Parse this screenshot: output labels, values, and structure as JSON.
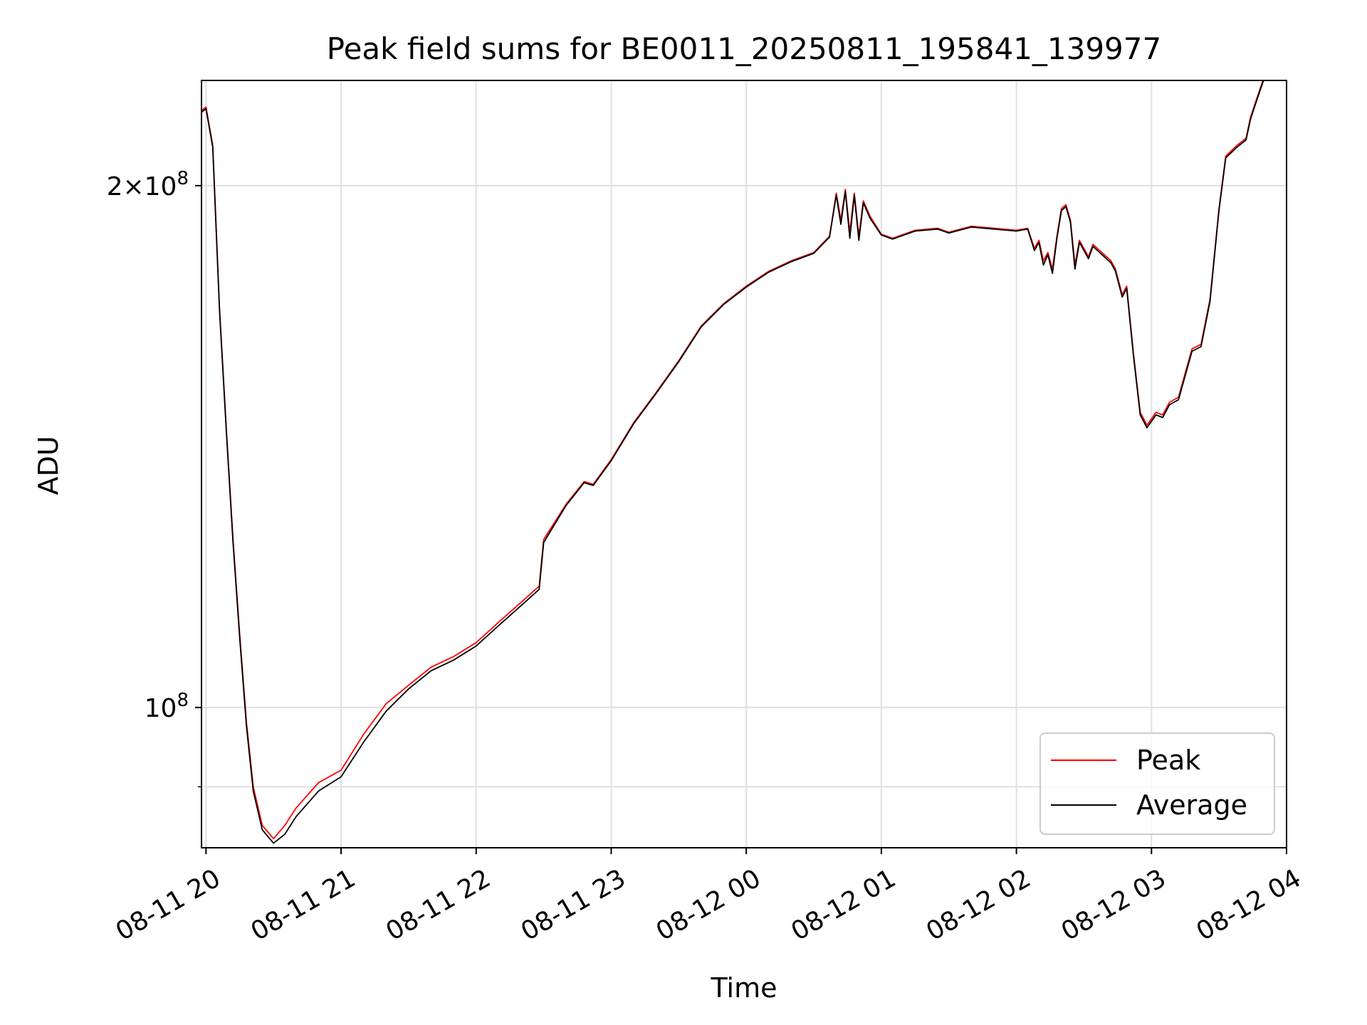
{
  "chart_data": {
    "type": "line",
    "title": "Peak field sums for BE0011_20250811_195841_139977",
    "xlabel": "Time",
    "ylabel": "ADU",
    "x_ticks": [
      "08-11 20",
      "08-11 21",
      "08-11 22",
      "08-11 23",
      "08-12 00",
      "08-12 01",
      "08-12 02",
      "08-12 03",
      "08-12 04"
    ],
    "y_scale": "log",
    "y_ticks": [
      {
        "value": 100000000,
        "base": "10",
        "exp": "8",
        "mult": ""
      },
      {
        "value": 200000000,
        "base": "10",
        "exp": "8",
        "mult": "2×"
      }
    ],
    "y_minor_ticks": [
      90000000
    ],
    "xlim": [
      "2025-08-11 19:58",
      "2025-08-12 04:00"
    ],
    "ylim": [
      83000000,
      230000000
    ],
    "grid": true,
    "legend_position": "lower-right",
    "series": [
      {
        "name": "Peak",
        "color": "#ff0000",
        "points": [
          [
            "2025-08-11 19:58",
            221000000
          ],
          [
            "2025-08-11 20:00",
            222000000
          ],
          [
            "2025-08-11 20:03",
            211000000
          ],
          [
            "2025-08-11 20:06",
            170000000
          ],
          [
            "2025-08-11 20:09",
            145000000
          ],
          [
            "2025-08-11 20:12",
            125000000
          ],
          [
            "2025-08-11 20:15",
            110000000
          ],
          [
            "2025-08-11 20:18",
            98000000
          ],
          [
            "2025-08-11 20:21",
            90000000
          ],
          [
            "2025-08-11 20:25",
            85500000
          ],
          [
            "2025-08-11 20:30",
            84000000
          ],
          [
            "2025-08-11 20:35",
            85500000
          ],
          [
            "2025-08-11 20:40",
            87500000
          ],
          [
            "2025-08-11 20:50",
            90500000
          ],
          [
            "2025-08-11 21:00",
            92000000
          ],
          [
            "2025-08-11 21:10",
            96500000
          ],
          [
            "2025-08-11 21:20",
            100500000
          ],
          [
            "2025-08-11 21:30",
            103000000
          ],
          [
            "2025-08-11 21:40",
            105500000
          ],
          [
            "2025-08-11 21:50",
            107000000
          ],
          [
            "2025-08-11 22:00",
            109000000
          ],
          [
            "2025-08-11 22:10",
            112000000
          ],
          [
            "2025-08-11 22:20",
            115000000
          ],
          [
            "2025-08-11 22:28",
            117500000
          ],
          [
            "2025-08-11 22:30",
            125000000
          ],
          [
            "2025-08-11 22:40",
            131000000
          ],
          [
            "2025-08-11 22:48",
            135000000
          ],
          [
            "2025-08-11 22:52",
            134500000
          ],
          [
            "2025-08-11 23:00",
            139000000
          ],
          [
            "2025-08-11 23:10",
            146000000
          ],
          [
            "2025-08-11 23:20",
            152000000
          ],
          [
            "2025-08-11 23:30",
            158500000
          ],
          [
            "2025-08-11 23:40",
            166000000
          ],
          [
            "2025-08-11 23:50",
            171000000
          ],
          [
            "2025-08-12 00:00",
            175000000
          ],
          [
            "2025-08-12 00:10",
            178500000
          ],
          [
            "2025-08-12 00:20",
            181000000
          ],
          [
            "2025-08-12 00:30",
            183000000
          ],
          [
            "2025-08-12 00:37",
            187000000
          ],
          [
            "2025-08-12 00:40",
            198000000
          ],
          [
            "2025-08-12 00:42",
            191000000
          ],
          [
            "2025-08-12 00:44",
            199000000
          ],
          [
            "2025-08-12 00:46",
            188000000
          ],
          [
            "2025-08-12 00:48",
            198000000
          ],
          [
            "2025-08-12 00:50",
            187000000
          ],
          [
            "2025-08-12 00:52",
            196000000
          ],
          [
            "2025-08-12 00:55",
            192000000
          ],
          [
            "2025-08-12 01:00",
            187500000
          ],
          [
            "2025-08-12 01:05",
            186500000
          ],
          [
            "2025-08-12 01:15",
            188500000
          ],
          [
            "2025-08-12 01:25",
            189000000
          ],
          [
            "2025-08-12 01:30",
            188000000
          ],
          [
            "2025-08-12 01:40",
            189500000
          ],
          [
            "2025-08-12 01:50",
            189000000
          ],
          [
            "2025-08-12 02:00",
            188500000
          ],
          [
            "2025-08-12 02:05",
            189000000
          ],
          [
            "2025-08-12 02:08",
            184000000
          ],
          [
            "2025-08-12 02:10",
            186000000
          ],
          [
            "2025-08-12 02:12",
            181000000
          ],
          [
            "2025-08-12 02:14",
            183000000
          ],
          [
            "2025-08-12 02:16",
            179000000
          ],
          [
            "2025-08-12 02:18",
            187000000
          ],
          [
            "2025-08-12 02:20",
            194000000
          ],
          [
            "2025-08-12 02:22",
            195000000
          ],
          [
            "2025-08-12 02:24",
            191000000
          ],
          [
            "2025-08-12 02:26",
            180000000
          ],
          [
            "2025-08-12 02:28",
            186000000
          ],
          [
            "2025-08-12 02:30",
            184000000
          ],
          [
            "2025-08-12 02:32",
            182000000
          ],
          [
            "2025-08-12 02:34",
            185000000
          ],
          [
            "2025-08-12 02:38",
            183000000
          ],
          [
            "2025-08-12 02:42",
            181000000
          ],
          [
            "2025-08-12 02:44",
            179000000
          ],
          [
            "2025-08-12 02:47",
            173000000
          ],
          [
            "2025-08-12 02:49",
            175000000
          ],
          [
            "2025-08-12 02:52",
            160000000
          ],
          [
            "2025-08-12 02:55",
            148000000
          ],
          [
            "2025-08-12 02:58",
            145500000
          ],
          [
            "2025-08-12 03:02",
            148000000
          ],
          [
            "2025-08-12 03:05",
            147500000
          ],
          [
            "2025-08-12 03:08",
            150000000
          ],
          [
            "2025-08-12 03:12",
            151000000
          ],
          [
            "2025-08-12 03:18",
            161000000
          ],
          [
            "2025-08-12 03:22",
            162000000
          ],
          [
            "2025-08-12 03:26",
            172000000
          ],
          [
            "2025-08-12 03:30",
            194000000
          ],
          [
            "2025-08-12 03:33",
            208000000
          ],
          [
            "2025-08-12 03:38",
            211000000
          ],
          [
            "2025-08-12 03:42",
            213000000
          ],
          [
            "2025-08-12 03:44",
            219000000
          ],
          [
            "2025-08-12 03:47",
            225000000
          ],
          [
            "2025-08-12 03:50",
            231000000
          ]
        ]
      },
      {
        "name": "Average",
        "color": "#000000",
        "points": [
          [
            "2025-08-11 19:58",
            220500000
          ],
          [
            "2025-08-11 20:00",
            221500000
          ],
          [
            "2025-08-11 20:03",
            210500000
          ],
          [
            "2025-08-11 20:06",
            169500000
          ],
          [
            "2025-08-11 20:09",
            144500000
          ],
          [
            "2025-08-11 20:12",
            124500000
          ],
          [
            "2025-08-11 20:15",
            109500000
          ],
          [
            "2025-08-11 20:18",
            97500000
          ],
          [
            "2025-08-11 20:21",
            89500000
          ],
          [
            "2025-08-11 20:25",
            85000000
          ],
          [
            "2025-08-11 20:30",
            83500000
          ],
          [
            "2025-08-11 20:35",
            84500000
          ],
          [
            "2025-08-11 20:40",
            86500000
          ],
          [
            "2025-08-11 20:50",
            89500000
          ],
          [
            "2025-08-11 21:00",
            91200000
          ],
          [
            "2025-08-11 21:10",
            95500000
          ],
          [
            "2025-08-11 21:20",
            99500000
          ],
          [
            "2025-08-11 21:30",
            102500000
          ],
          [
            "2025-08-11 21:40",
            105000000
          ],
          [
            "2025-08-11 21:50",
            106500000
          ],
          [
            "2025-08-11 22:00",
            108500000
          ],
          [
            "2025-08-11 22:10",
            111500000
          ],
          [
            "2025-08-11 22:20",
            114500000
          ],
          [
            "2025-08-11 22:28",
            117000000
          ],
          [
            "2025-08-11 22:30",
            124500000
          ],
          [
            "2025-08-11 22:40",
            130800000
          ],
          [
            "2025-08-11 22:48",
            134800000
          ],
          [
            "2025-08-11 22:52",
            134300000
          ],
          [
            "2025-08-11 23:00",
            138800000
          ],
          [
            "2025-08-11 23:10",
            145800000
          ],
          [
            "2025-08-11 23:20",
            151800000
          ],
          [
            "2025-08-11 23:30",
            158300000
          ],
          [
            "2025-08-11 23:40",
            165800000
          ],
          [
            "2025-08-11 23:50",
            170800000
          ],
          [
            "2025-08-12 00:00",
            174800000
          ],
          [
            "2025-08-12 00:10",
            178300000
          ],
          [
            "2025-08-12 00:20",
            180800000
          ],
          [
            "2025-08-12 00:30",
            182800000
          ],
          [
            "2025-08-12 00:37",
            186800000
          ],
          [
            "2025-08-12 00:40",
            197500000
          ],
          [
            "2025-08-12 00:42",
            190000000
          ],
          [
            "2025-08-12 00:44",
            198500000
          ],
          [
            "2025-08-12 00:46",
            186500000
          ],
          [
            "2025-08-12 00:48",
            197500000
          ],
          [
            "2025-08-12 00:50",
            186000000
          ],
          [
            "2025-08-12 00:52",
            195500000
          ],
          [
            "2025-08-12 00:55",
            191500000
          ],
          [
            "2025-08-12 01:00",
            187300000
          ],
          [
            "2025-08-12 01:05",
            186300000
          ],
          [
            "2025-08-12 01:15",
            188300000
          ],
          [
            "2025-08-12 01:25",
            188800000
          ],
          [
            "2025-08-12 01:30",
            187800000
          ],
          [
            "2025-08-12 01:40",
            189300000
          ],
          [
            "2025-08-12 01:50",
            188800000
          ],
          [
            "2025-08-12 02:00",
            188300000
          ],
          [
            "2025-08-12 02:05",
            188800000
          ],
          [
            "2025-08-12 02:08",
            183500000
          ],
          [
            "2025-08-12 02:10",
            185500000
          ],
          [
            "2025-08-12 02:12",
            180000000
          ],
          [
            "2025-08-12 02:14",
            182500000
          ],
          [
            "2025-08-12 02:16",
            178000000
          ],
          [
            "2025-08-12 02:18",
            186500000
          ],
          [
            "2025-08-12 02:20",
            193500000
          ],
          [
            "2025-08-12 02:22",
            194500000
          ],
          [
            "2025-08-12 02:24",
            190500000
          ],
          [
            "2025-08-12 02:26",
            179000000
          ],
          [
            "2025-08-12 02:28",
            185500000
          ],
          [
            "2025-08-12 02:30",
            183500000
          ],
          [
            "2025-08-12 02:32",
            181500000
          ],
          [
            "2025-08-12 02:34",
            184500000
          ],
          [
            "2025-08-12 02:38",
            182500000
          ],
          [
            "2025-08-12 02:42",
            180500000
          ],
          [
            "2025-08-12 02:44",
            178500000
          ],
          [
            "2025-08-12 02:47",
            172500000
          ],
          [
            "2025-08-12 02:49",
            174500000
          ],
          [
            "2025-08-12 02:52",
            159500000
          ],
          [
            "2025-08-12 02:55",
            147500000
          ],
          [
            "2025-08-12 02:58",
            145000000
          ],
          [
            "2025-08-12 03:02",
            147500000
          ],
          [
            "2025-08-12 03:05",
            147000000
          ],
          [
            "2025-08-12 03:08",
            149500000
          ],
          [
            "2025-08-12 03:12",
            150500000
          ],
          [
            "2025-08-12 03:18",
            160500000
          ],
          [
            "2025-08-12 03:22",
            161500000
          ],
          [
            "2025-08-12 03:26",
            171500000
          ],
          [
            "2025-08-12 03:30",
            193500000
          ],
          [
            "2025-08-12 03:33",
            207500000
          ],
          [
            "2025-08-12 03:38",
            210500000
          ],
          [
            "2025-08-12 03:42",
            212500000
          ],
          [
            "2025-08-12 03:44",
            218500000
          ],
          [
            "2025-08-12 03:47",
            224500000
          ],
          [
            "2025-08-12 03:50",
            230500000
          ]
        ]
      }
    ]
  }
}
